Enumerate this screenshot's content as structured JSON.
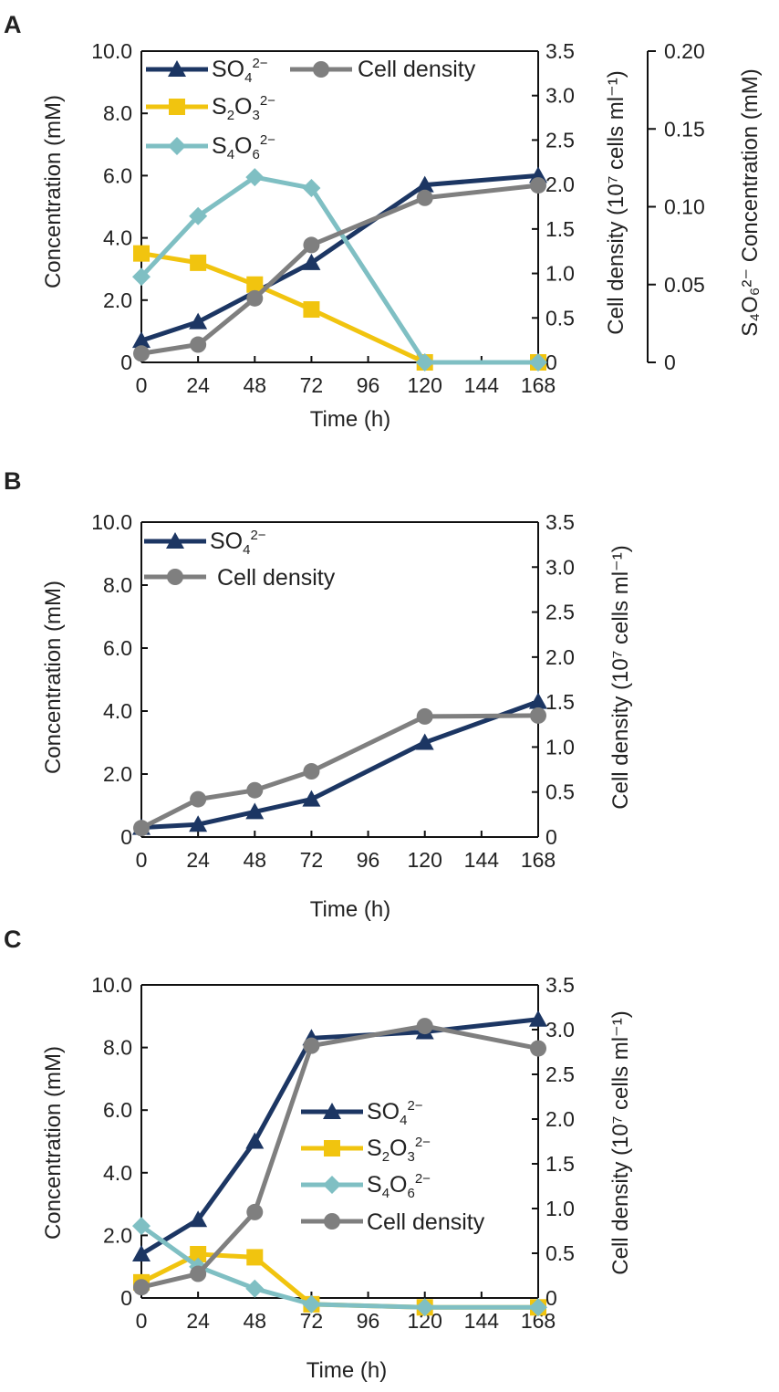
{
  "chart_data": [
    {
      "panel": "A",
      "type": "line",
      "xlabel": "Time (h)",
      "x_ticks": [
        "0",
        "24",
        "48",
        "72",
        "96",
        "120",
        "144",
        "168"
      ],
      "xlim": [
        0,
        168
      ],
      "ylabel": "Concentration (mM)",
      "ylim": [
        0,
        10
      ],
      "y_ticks": [
        "0",
        "2.0",
        "4.0",
        "6.0",
        "8.0",
        "10.0"
      ],
      "y2label": "Cell density (10⁷ cells ml⁻¹)",
      "y2lim": [
        0,
        3.5
      ],
      "y2_ticks": [
        "0",
        "0.5",
        "1.0",
        "1.5",
        "2.0",
        "2.5",
        "3.0",
        "3.5"
      ],
      "y3label": "S₄O₆²⁻ Concentration (mM)",
      "y3lim": [
        0,
        0.2
      ],
      "y3_ticks": [
        "0",
        "0.05",
        "0.10",
        "0.15",
        "0.20"
      ],
      "legend": "top-left",
      "series": [
        {
          "key": "so4",
          "name": "SO42−",
          "axis": "left",
          "color": "#1c3663",
          "marker": "triangle",
          "x": [
            0,
            24,
            72,
            120,
            168
          ],
          "values": [
            0.7,
            1.3,
            3.2,
            5.7,
            6.0
          ]
        },
        {
          "key": "s2o3",
          "name": "S2O32−",
          "axis": "left",
          "color": "#f1c40f",
          "marker": "square",
          "x": [
            0,
            24,
            48,
            72,
            120,
            168
          ],
          "values": [
            3.5,
            3.2,
            2.5,
            1.7,
            0,
            0
          ]
        },
        {
          "key": "s4o6",
          "name": "S4O62−",
          "axis": "third",
          "color": "#7fbfc3",
          "marker": "diamond",
          "x": [
            0,
            24,
            48,
            72,
            120,
            168
          ],
          "values": [
            0.055,
            0.094,
            0.119,
            0.112,
            0,
            0
          ]
        },
        {
          "key": "cell",
          "name": "Cell density",
          "axis": "right",
          "color": "#7f7f7f",
          "marker": "circle",
          "x": [
            0,
            24,
            48,
            72,
            120,
            168
          ],
          "values": [
            0.1,
            0.2,
            0.72,
            1.32,
            1.85,
            1.99
          ]
        }
      ]
    },
    {
      "panel": "B",
      "type": "line",
      "xlabel": "Time (h)",
      "x_ticks": [
        "0",
        "24",
        "48",
        "72",
        "96",
        "120",
        "144",
        "168"
      ],
      "xlim": [
        0,
        168
      ],
      "ylabel": "Concentration (mM)",
      "ylim": [
        0,
        10
      ],
      "y_ticks": [
        "0",
        "2.0",
        "4.0",
        "6.0",
        "8.0",
        "10.0"
      ],
      "y2label": "Cell density (10⁷ cells ml⁻¹)",
      "y2lim": [
        0,
        3.5
      ],
      "y2_ticks": [
        "0",
        "0.5",
        "1.0",
        "1.5",
        "2.0",
        "2.5",
        "3.0",
        "3.5"
      ],
      "legend": "top-left",
      "series": [
        {
          "key": "so4",
          "name": "SO42−",
          "axis": "left",
          "color": "#1c3663",
          "marker": "triangle",
          "x": [
            0,
            24,
            48,
            72,
            120,
            168
          ],
          "values": [
            0.3,
            0.4,
            0.8,
            1.2,
            3.0,
            4.3
          ]
        },
        {
          "key": "cell",
          "name": "Cell density",
          "axis": "right",
          "color": "#7f7f7f",
          "marker": "circle",
          "x": [
            0,
            24,
            48,
            72,
            120,
            168
          ],
          "values": [
            0.1,
            0.42,
            0.52,
            0.73,
            1.34,
            1.35
          ]
        }
      ]
    },
    {
      "panel": "C",
      "type": "line",
      "xlabel": "Time (h)",
      "x_ticks": [
        "0",
        "24",
        "48",
        "72",
        "96",
        "120",
        "144",
        "168"
      ],
      "xlim": [
        0,
        168
      ],
      "ylabel": "Concentration (mM)",
      "ylim": [
        0,
        10
      ],
      "y_ticks": [
        "0",
        "2.0",
        "4.0",
        "6.0",
        "8.0",
        "10.0"
      ],
      "y2label": "Cell density (10⁷ cells ml⁻¹)",
      "y2lim": [
        0,
        3.5
      ],
      "y2_ticks": [
        "0",
        "0.5",
        "1.0",
        "1.5",
        "2.0",
        "2.5",
        "3.0",
        "3.5"
      ],
      "legend": "center-right",
      "series": [
        {
          "key": "so4",
          "name": "SO42−",
          "axis": "left",
          "color": "#1c3663",
          "marker": "triangle",
          "x": [
            0,
            24,
            48,
            72,
            120,
            168
          ],
          "values": [
            1.4,
            2.5,
            5.0,
            8.3,
            8.5,
            8.9
          ]
        },
        {
          "key": "s2o3",
          "name": "S2O32−",
          "axis": "left",
          "color": "#f1c40f",
          "marker": "square",
          "x": [
            0,
            24,
            48,
            72,
            120,
            168
          ],
          "values": [
            0.5,
            1.4,
            1.3,
            -0.2,
            -0.3,
            -0.3
          ]
        },
        {
          "key": "s4o6",
          "name": "S4O62−",
          "axis": "left",
          "color": "#7fbfc3",
          "marker": "diamond",
          "x": [
            0,
            24,
            48,
            72,
            120,
            168
          ],
          "values": [
            2.3,
            1.0,
            0.3,
            -0.2,
            -0.3,
            -0.3
          ]
        },
        {
          "key": "cell",
          "name": "Cell density",
          "axis": "right",
          "color": "#7f7f7f",
          "marker": "circle",
          "x": [
            0,
            24,
            48,
            72,
            120,
            168
          ],
          "values": [
            0.12,
            0.27,
            0.96,
            2.82,
            3.04,
            2.79
          ]
        }
      ]
    }
  ]
}
